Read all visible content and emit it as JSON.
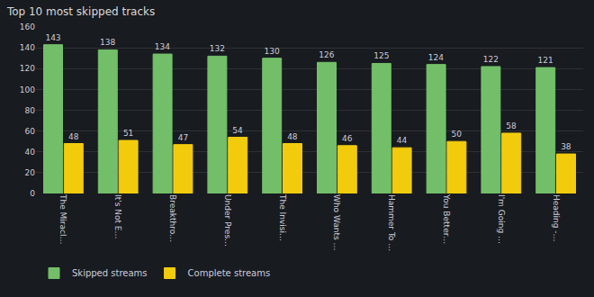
{
  "chart_data": {
    "type": "bar",
    "title": "Top 10 most skipped tracks",
    "categories": [
      "The Miracl…",
      "It's Not E…",
      "Breakthro…",
      "Under Pres…",
      "The Invisi…",
      "Who Wants …",
      "Hammer To …",
      "You Better…",
      "I'm Going …",
      "Heading -…"
    ],
    "series": [
      {
        "name": "Skipped streams",
        "color": "#73bf69",
        "values": [
          143,
          138,
          134,
          132,
          130,
          126,
          125,
          124,
          122,
          121
        ]
      },
      {
        "name": "Complete streams",
        "color": "#f2cc0c",
        "values": [
          48,
          51,
          47,
          54,
          48,
          46,
          44,
          50,
          58,
          38
        ]
      }
    ],
    "ylim": [
      0,
      160
    ],
    "yticks": [
      0,
      20,
      40,
      60,
      80,
      100,
      120,
      140,
      160
    ],
    "grid": true,
    "legend": "bottom-left",
    "data_labels": true
  }
}
